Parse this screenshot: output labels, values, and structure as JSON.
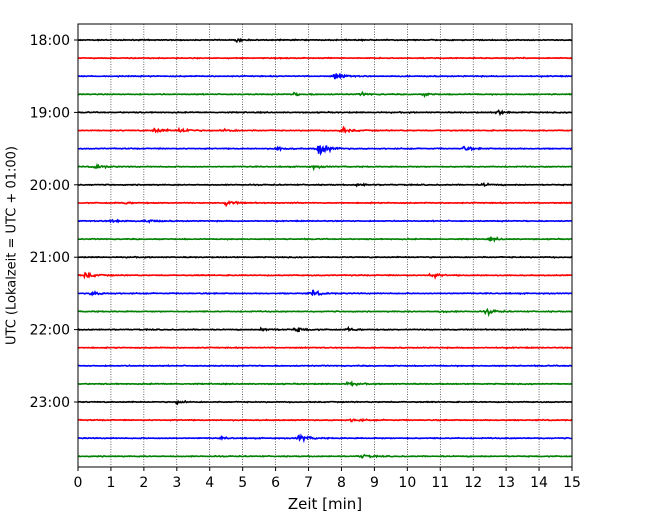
{
  "chart_data": {
    "type": "line",
    "title": "",
    "xlabel": "Zeit  [min]",
    "ylabel": "UTC (Lokalzeit = UTC + 01:00)",
    "xlim": [
      0,
      15
    ],
    "x_ticks": [
      0,
      1,
      2,
      3,
      4,
      5,
      6,
      7,
      8,
      9,
      10,
      11,
      12,
      13,
      14,
      15
    ],
    "y_ticks": [
      "18:00",
      "19:00",
      "20:00",
      "21:00",
      "22:00",
      "23:00"
    ],
    "grid": "x",
    "trace_colors": [
      "#000000",
      "#ff0000",
      "#0000ff",
      "#008000"
    ],
    "series": [
      {
        "offset_min": 0,
        "events": [
          {
            "t": 4.8,
            "amp": 0.3
          }
        ]
      },
      {
        "offset_min": 15,
        "events": []
      },
      {
        "offset_min": 30,
        "events": [
          {
            "t": 7.8,
            "amp": 0.75
          }
        ]
      },
      {
        "offset_min": 45,
        "events": [
          {
            "t": 6.5,
            "amp": 0.3
          },
          {
            "t": 8.6,
            "amp": 0.25
          },
          {
            "t": 10.5,
            "amp": 0.2
          }
        ]
      },
      {
        "offset_min": 60,
        "events": [
          {
            "t": 12.7,
            "amp": 0.45
          }
        ]
      },
      {
        "offset_min": 75,
        "events": [
          {
            "t": 2.3,
            "amp": 0.55
          },
          {
            "t": 3.1,
            "amp": 0.5
          },
          {
            "t": 4.4,
            "amp": 0.4
          },
          {
            "t": 8.0,
            "amp": 0.5
          }
        ]
      },
      {
        "offset_min": 90,
        "events": [
          {
            "t": 7.3,
            "amp": 1.5
          },
          {
            "t": 6.0,
            "amp": 0.4
          },
          {
            "t": 11.7,
            "amp": 0.4
          }
        ]
      },
      {
        "offset_min": 105,
        "events": [
          {
            "t": 0.5,
            "amp": 0.5
          },
          {
            "t": 7.1,
            "amp": 0.3
          }
        ]
      },
      {
        "offset_min": 120,
        "events": [
          {
            "t": 8.5,
            "amp": 0.3
          },
          {
            "t": 12.3,
            "amp": 0.25
          }
        ]
      },
      {
        "offset_min": 135,
        "events": [
          {
            "t": 4.5,
            "amp": 0.45
          },
          {
            "t": 1.4,
            "amp": 0.2
          }
        ]
      },
      {
        "offset_min": 150,
        "events": [
          {
            "t": 1.0,
            "amp": 0.5
          },
          {
            "t": 2.1,
            "amp": 0.4
          }
        ]
      },
      {
        "offset_min": 165,
        "events": [
          {
            "t": 12.5,
            "amp": 0.35
          }
        ]
      },
      {
        "offset_min": 180,
        "events": [
          {
            "t": 15.0,
            "amp": 0.3
          }
        ]
      },
      {
        "offset_min": 195,
        "events": [
          {
            "t": 0.2,
            "amp": 0.6
          },
          {
            "t": 10.7,
            "amp": 0.5
          }
        ]
      },
      {
        "offset_min": 210,
        "events": [
          {
            "t": 0.4,
            "amp": 0.35
          },
          {
            "t": 7.1,
            "amp": 0.6
          }
        ]
      },
      {
        "offset_min": 225,
        "events": [
          {
            "t": 12.4,
            "amp": 0.5
          },
          {
            "t": 11.0,
            "amp": 0.2
          }
        ]
      },
      {
        "offset_min": 240,
        "events": [
          {
            "t": 5.6,
            "amp": 0.45
          },
          {
            "t": 6.6,
            "amp": 0.5
          },
          {
            "t": 8.2,
            "amp": 0.3
          }
        ]
      },
      {
        "offset_min": 255,
        "events": []
      },
      {
        "offset_min": 270,
        "events": []
      },
      {
        "offset_min": 285,
        "events": [
          {
            "t": 8.2,
            "amp": 0.4
          }
        ]
      },
      {
        "offset_min": 300,
        "events": [
          {
            "t": 3.0,
            "amp": 0.3
          }
        ]
      },
      {
        "offset_min": 315,
        "events": [
          {
            "t": 8.3,
            "amp": 0.35
          }
        ]
      },
      {
        "offset_min": 330,
        "events": [
          {
            "t": 6.7,
            "amp": 0.75
          },
          {
            "t": 4.3,
            "amp": 0.15
          }
        ]
      },
      {
        "offset_min": 345,
        "events": [
          {
            "t": 8.6,
            "amp": 0.35
          }
        ]
      }
    ]
  }
}
